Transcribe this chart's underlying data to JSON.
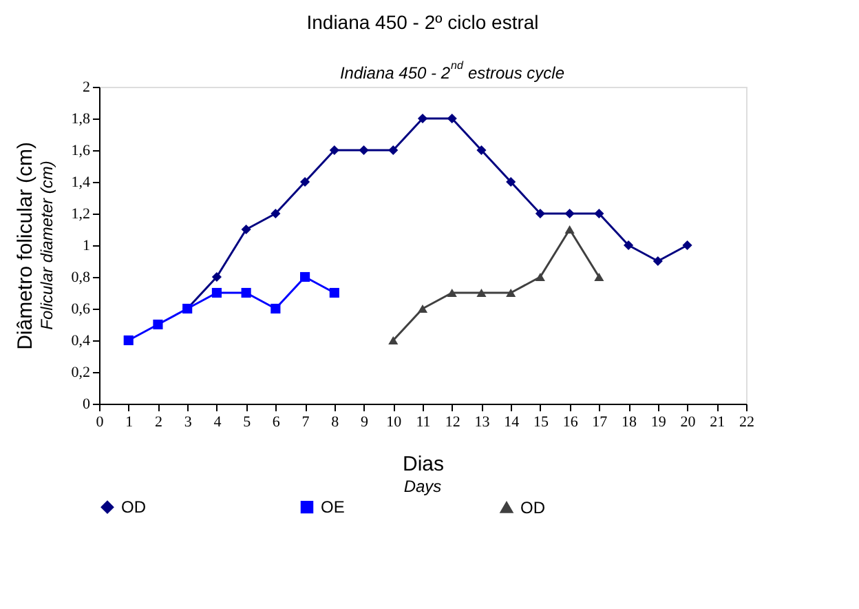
{
  "chart_data": {
    "type": "line",
    "title": "Indiana 450 - 2º ciclo estral",
    "subtitle": "Indiana 450 - 2$^{nd}$ estrous cycle",
    "xlabel": "Dias",
    "ylabel": "Diâmetro folicular (cm)",
    "annotations": [
      "Days",
      "Folicular diameter (cm)"
    ],
    "xlim": [
      0,
      22
    ],
    "xticks": [
      0,
      1,
      2,
      3,
      4,
      5,
      6,
      7,
      8,
      9,
      10,
      11,
      12,
      13,
      14,
      15,
      16,
      17,
      18,
      19,
      20,
      21,
      22
    ],
    "ylim": [
      0,
      2
    ],
    "yticks": [
      0,
      {
        "value": 0.2,
        "label": "0,2"
      },
      {
        "value": 0.4,
        "label": "0,4"
      },
      {
        "value": 0.6,
        "label": "0,6"
      },
      {
        "value": 0.8,
        "label": "0,8"
      },
      1,
      {
        "value": 1.2,
        "label": "1,2"
      },
      {
        "value": 1.4,
        "label": "1,4"
      },
      {
        "value": 1.6,
        "label": "1,6"
      },
      {
        "value": 1.8,
        "label": "1,8"
      },
      2
    ],
    "grid": false,
    "legend": "bottom",
    "series": [
      {
        "name": "OD",
        "color": "#000080",
        "marker": "diamond",
        "x": [
          3,
          4,
          5,
          6,
          7,
          8,
          9,
          10,
          11,
          12,
          13,
          14,
          15,
          16,
          17,
          18,
          19,
          20
        ],
        "values": [
          0.6,
          0.8,
          1.1,
          1.2,
          1.4,
          1.6,
          1.6,
          1.6,
          1.8,
          1.8,
          1.6,
          1.4,
          1.2,
          1.2,
          1.2,
          1.0,
          0.9,
          1.0
        ]
      },
      {
        "name": "OE",
        "color": "#0000ff",
        "marker": "square",
        "x": [
          1,
          2,
          3,
          4,
          5,
          6,
          7,
          8
        ],
        "values": [
          0.4,
          0.5,
          0.6,
          0.7,
          0.7,
          0.6,
          0.8,
          0.7
        ]
      },
      {
        "name": "OD",
        "color": "#404040",
        "marker": "triangle",
        "x": [
          10,
          11,
          12,
          13,
          14,
          15,
          16,
          17
        ],
        "values": [
          0.4,
          0.6,
          0.7,
          0.7,
          0.7,
          0.8,
          1.1,
          0.8
        ]
      }
    ]
  }
}
